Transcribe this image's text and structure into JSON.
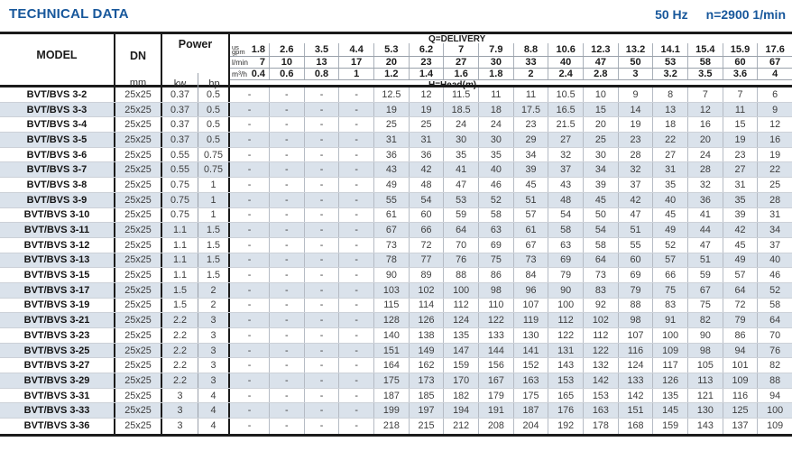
{
  "page": {
    "title": "TECHNICAL DATA",
    "frequency": "50 Hz",
    "speed": "n=2900 1/min"
  },
  "table": {
    "model_header": "MODEL",
    "dn_header": "DN",
    "dn_unit": "mm",
    "power_header": "Power",
    "power_unit_kw": "kw",
    "power_unit_hp": "hp",
    "delivery_label": "Q=DELIVERY",
    "head_label_prefix": "H=Head(",
    "head_label_unit": "m",
    "head_label_suffix": ")",
    "flow_header_rows": [
      {
        "unit_prefix": "us",
        "unit": "gpm",
        "values": [
          "1.8",
          "2.6",
          "3.5",
          "4.4",
          "5.3",
          "6.2",
          "7",
          "7.9",
          "8.8",
          "10.6",
          "12.3",
          "13.2",
          "14.1",
          "15.4",
          "15.9",
          "17.6"
        ]
      },
      {
        "unit_prefix": "",
        "unit": "l/min",
        "values": [
          "7",
          "10",
          "13",
          "17",
          "20",
          "23",
          "27",
          "30",
          "33",
          "40",
          "47",
          "50",
          "53",
          "58",
          "60",
          "67"
        ]
      },
      {
        "unit_prefix": "",
        "unit": "m³/h",
        "values": [
          "0.4",
          "0.6",
          "0.8",
          "1",
          "1.2",
          "1.4",
          "1.6",
          "1.8",
          "2",
          "2.4",
          "2.8",
          "3",
          "3.2",
          "3.5",
          "3.6",
          "4"
        ]
      }
    ],
    "rows": [
      {
        "model": "BVT/BVS 3-2",
        "dn": "25x25",
        "kw": "0.37",
        "hp": "0.5",
        "heads": [
          "-",
          "-",
          "-",
          "-",
          "12.5",
          "12",
          "11.5",
          "11",
          "11",
          "10.5",
          "10",
          "9",
          "8",
          "7",
          "7",
          "6"
        ]
      },
      {
        "model": "BVT/BVS 3-3",
        "dn": "25x25",
        "kw": "0.37",
        "hp": "0.5",
        "heads": [
          "-",
          "-",
          "-",
          "-",
          "19",
          "19",
          "18.5",
          "18",
          "17.5",
          "16.5",
          "15",
          "14",
          "13",
          "12",
          "11",
          "9"
        ]
      },
      {
        "model": "BVT/BVS 3-4",
        "dn": "25x25",
        "kw": "0.37",
        "hp": "0.5",
        "heads": [
          "-",
          "-",
          "-",
          "-",
          "25",
          "25",
          "24",
          "24",
          "23",
          "21.5",
          "20",
          "19",
          "18",
          "16",
          "15",
          "12"
        ]
      },
      {
        "model": "BVT/BVS 3-5",
        "dn": "25x25",
        "kw": "0.37",
        "hp": "0.5",
        "heads": [
          "-",
          "-",
          "-",
          "-",
          "31",
          "31",
          "30",
          "30",
          "29",
          "27",
          "25",
          "23",
          "22",
          "20",
          "19",
          "16"
        ]
      },
      {
        "model": "BVT/BVS 3-6",
        "dn": "25x25",
        "kw": "0.55",
        "hp": "0.75",
        "heads": [
          "-",
          "-",
          "-",
          "-",
          "36",
          "36",
          "35",
          "35",
          "34",
          "32",
          "30",
          "28",
          "27",
          "24",
          "23",
          "19"
        ]
      },
      {
        "model": "BVT/BVS 3-7",
        "dn": "25x25",
        "kw": "0.55",
        "hp": "0.75",
        "heads": [
          "-",
          "-",
          "-",
          "-",
          "43",
          "42",
          "41",
          "40",
          "39",
          "37",
          "34",
          "32",
          "31",
          "28",
          "27",
          "22"
        ]
      },
      {
        "model": "BVT/BVS 3-8",
        "dn": "25x25",
        "kw": "0.75",
        "hp": "1",
        "heads": [
          "-",
          "-",
          "-",
          "-",
          "49",
          "48",
          "47",
          "46",
          "45",
          "43",
          "39",
          "37",
          "35",
          "32",
          "31",
          "25"
        ]
      },
      {
        "model": "BVT/BVS 3-9",
        "dn": "25x25",
        "kw": "0.75",
        "hp": "1",
        "heads": [
          "-",
          "-",
          "-",
          "-",
          "55",
          "54",
          "53",
          "52",
          "51",
          "48",
          "45",
          "42",
          "40",
          "36",
          "35",
          "28"
        ]
      },
      {
        "model": "BVT/BVS 3-10",
        "dn": "25x25",
        "kw": "0.75",
        "hp": "1",
        "heads": [
          "-",
          "-",
          "-",
          "-",
          "61",
          "60",
          "59",
          "58",
          "57",
          "54",
          "50",
          "47",
          "45",
          "41",
          "39",
          "31"
        ]
      },
      {
        "model": "BVT/BVS 3-11",
        "dn": "25x25",
        "kw": "1.1",
        "hp": "1.5",
        "heads": [
          "-",
          "-",
          "-",
          "-",
          "67",
          "66",
          "64",
          "63",
          "61",
          "58",
          "54",
          "51",
          "49",
          "44",
          "42",
          "34"
        ]
      },
      {
        "model": "BVT/BVS 3-12",
        "dn": "25x25",
        "kw": "1.1",
        "hp": "1.5",
        "heads": [
          "-",
          "-",
          "-",
          "-",
          "73",
          "72",
          "70",
          "69",
          "67",
          "63",
          "58",
          "55",
          "52",
          "47",
          "45",
          "37"
        ]
      },
      {
        "model": "BVT/BVS 3-13",
        "dn": "25x25",
        "kw": "1.1",
        "hp": "1.5",
        "heads": [
          "-",
          "-",
          "-",
          "-",
          "78",
          "77",
          "76",
          "75",
          "73",
          "69",
          "64",
          "60",
          "57",
          "51",
          "49",
          "40"
        ]
      },
      {
        "model": "BVT/BVS 3-15",
        "dn": "25x25",
        "kw": "1.1",
        "hp": "1.5",
        "heads": [
          "-",
          "-",
          "-",
          "-",
          "90",
          "89",
          "88",
          "86",
          "84",
          "79",
          "73",
          "69",
          "66",
          "59",
          "57",
          "46"
        ]
      },
      {
        "model": "BVT/BVS 3-17",
        "dn": "25x25",
        "kw": "1.5",
        "hp": "2",
        "heads": [
          "-",
          "-",
          "-",
          "-",
          "103",
          "102",
          "100",
          "98",
          "96",
          "90",
          "83",
          "79",
          "75",
          "67",
          "64",
          "52"
        ]
      },
      {
        "model": "BVT/BVS 3-19",
        "dn": "25x25",
        "kw": "1.5",
        "hp": "2",
        "heads": [
          "-",
          "-",
          "-",
          "-",
          "115",
          "114",
          "112",
          "110",
          "107",
          "100",
          "92",
          "88",
          "83",
          "75",
          "72",
          "58"
        ]
      },
      {
        "model": "BVT/BVS 3-21",
        "dn": "25x25",
        "kw": "2.2",
        "hp": "3",
        "heads": [
          "-",
          "-",
          "-",
          "-",
          "128",
          "126",
          "124",
          "122",
          "119",
          "112",
          "102",
          "98",
          "91",
          "82",
          "79",
          "64"
        ]
      },
      {
        "model": "BVT/BVS 3-23",
        "dn": "25x25",
        "kw": "2.2",
        "hp": "3",
        "heads": [
          "-",
          "-",
          "-",
          "-",
          "140",
          "138",
          "135",
          "133",
          "130",
          "122",
          "112",
          "107",
          "100",
          "90",
          "86",
          "70"
        ]
      },
      {
        "model": "BVT/BVS 3-25",
        "dn": "25x25",
        "kw": "2.2",
        "hp": "3",
        "heads": [
          "-",
          "-",
          "-",
          "-",
          "151",
          "149",
          "147",
          "144",
          "141",
          "131",
          "122",
          "116",
          "109",
          "98",
          "94",
          "76"
        ]
      },
      {
        "model": "BVT/BVS 3-27",
        "dn": "25x25",
        "kw": "2.2",
        "hp": "3",
        "heads": [
          "-",
          "-",
          "-",
          "-",
          "164",
          "162",
          "159",
          "156",
          "152",
          "143",
          "132",
          "124",
          "117",
          "105",
          "101",
          "82"
        ]
      },
      {
        "model": "BVT/BVS 3-29",
        "dn": "25x25",
        "kw": "2.2",
        "hp": "3",
        "heads": [
          "-",
          "-",
          "-",
          "-",
          "175",
          "173",
          "170",
          "167",
          "163",
          "153",
          "142",
          "133",
          "126",
          "113",
          "109",
          "88"
        ]
      },
      {
        "model": "BVT/BVS 3-31",
        "dn": "25x25",
        "kw": "3",
        "hp": "4",
        "heads": [
          "-",
          "-",
          "-",
          "-",
          "187",
          "185",
          "182",
          "179",
          "175",
          "165",
          "153",
          "142",
          "135",
          "121",
          "116",
          "94"
        ]
      },
      {
        "model": "BVT/BVS 3-33",
        "dn": "25x25",
        "kw": "3",
        "hp": "4",
        "heads": [
          "-",
          "-",
          "-",
          "-",
          "199",
          "197",
          "194",
          "191",
          "187",
          "176",
          "163",
          "151",
          "145",
          "130",
          "125",
          "100"
        ]
      },
      {
        "model": "BVT/BVS 3-36",
        "dn": "25x25",
        "kw": "3",
        "hp": "4",
        "heads": [
          "-",
          "-",
          "-",
          "-",
          "218",
          "215",
          "212",
          "208",
          "204",
          "192",
          "178",
          "168",
          "159",
          "143",
          "137",
          "109"
        ]
      }
    ]
  }
}
